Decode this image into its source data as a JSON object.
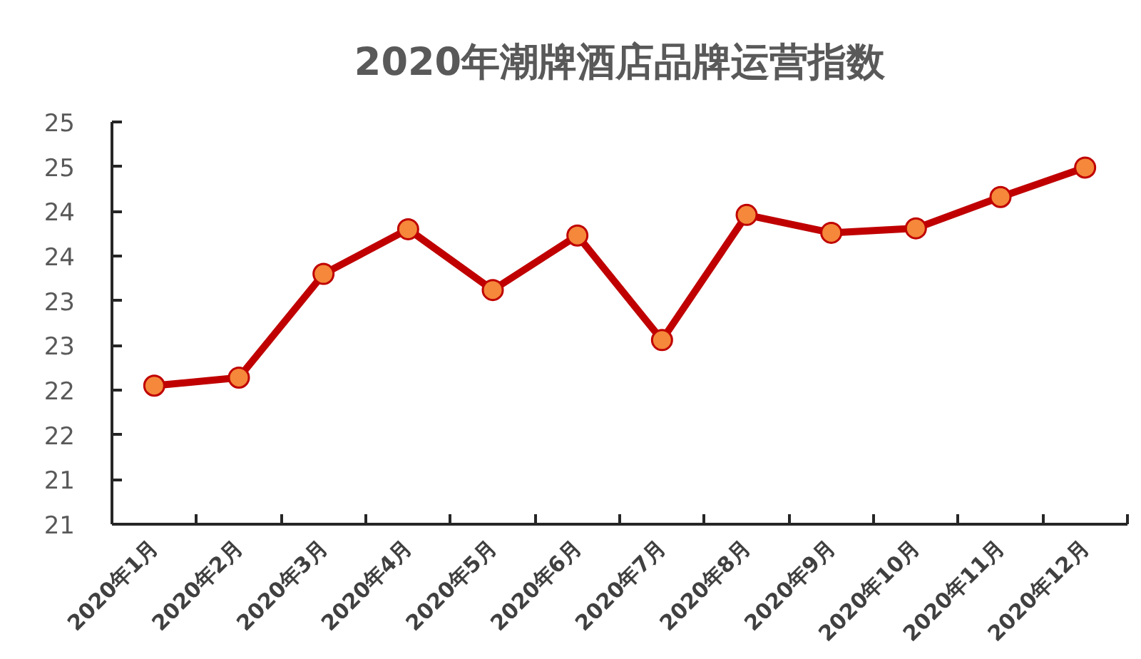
{
  "chart_data": {
    "type": "line",
    "title": "2020年潮牌酒店品牌运营指数",
    "categories": [
      "2020年1月",
      "2020年2月",
      "2020年3月",
      "2020年4月",
      "2020年5月",
      "2020年6月",
      "2020年7月",
      "2020年8月",
      "2020年9月",
      "2020年10月",
      "2020年11月",
      "2020年12月"
    ],
    "series": [
      {
        "color": "#c00000",
        "values": [
          22.05,
          22.14,
          23.3,
          23.8,
          23.12,
          23.73,
          22.56,
          23.96,
          23.76,
          23.81,
          24.16,
          24.49
        ]
      }
    ],
    "ylim": [
      20.5,
      25
    ],
    "yticks": [
      {
        "value": 20.5,
        "label": "21"
      },
      21,
      {
        "value": 21.5,
        "label": "22"
      },
      22,
      {
        "value": 22.5,
        "label": "23"
      },
      23,
      {
        "value": 23.5,
        "label": "24"
      },
      24,
      {
        "value": 24.5,
        "label": "25"
      },
      25
    ],
    "marker": "circle",
    "line_style": "solid"
  }
}
